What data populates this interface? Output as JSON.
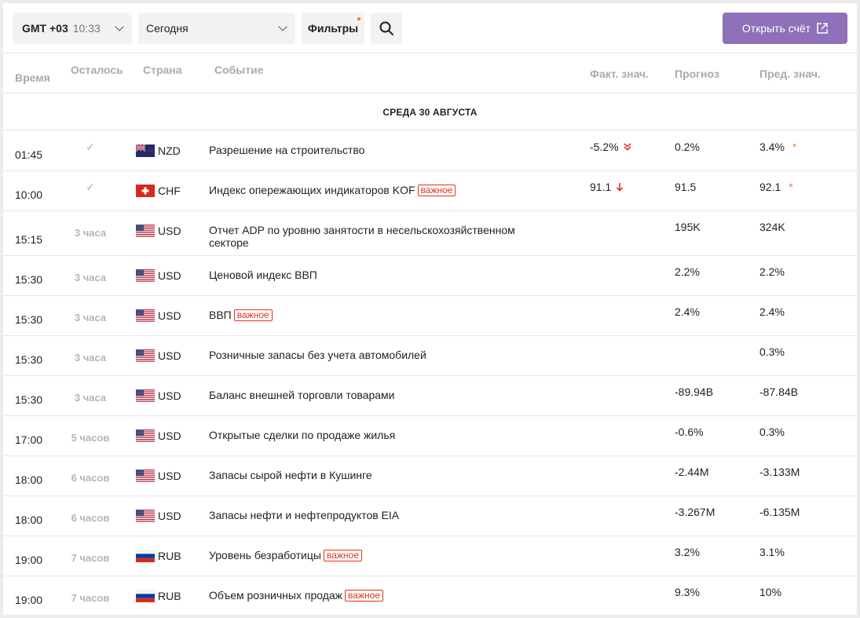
{
  "toolbar": {
    "timezone_label": "GMT +03",
    "timezone_time": "10:33",
    "date_value": "Сегодня",
    "filters_label": "Фильтры",
    "open_account_label": "Открыть счёт"
  },
  "columns": {
    "time": "Время",
    "remaining": "Осталось",
    "country": "Страна",
    "event": "Событие",
    "actual": "Факт. знач.",
    "forecast": "Прогноз",
    "previous": "Пред. знач."
  },
  "date_header": "СРЕДА 30 АВГУСТА",
  "badge_text": "важное",
  "colors": {
    "accent": "#8e71b8",
    "important": "#e0341c",
    "star": "#f07a3f"
  },
  "rows": [
    {
      "time": "01:45",
      "remaining": "✓",
      "currency": "NZD",
      "flag": "nz",
      "event": "Разрешение на строительство",
      "important": false,
      "actual": "-5.2%",
      "actual_icon": "double-down-arrow-icon",
      "forecast": "0.2%",
      "previous": "3.4%",
      "revised": true
    },
    {
      "time": "10:00",
      "remaining": "✓",
      "currency": "CHF",
      "flag": "ch",
      "event": "Индекс опережающих индикаторов KOF",
      "important": true,
      "actual": "91.1",
      "actual_icon": "down-arrow-icon",
      "forecast": "91.5",
      "previous": "92.1",
      "revised": true
    },
    {
      "time": "15:15",
      "remaining": "3 часа",
      "currency": "USD",
      "flag": "us",
      "event": "Отчет ADP по уровню занятости в несельскохозяйственном секторе",
      "important": false,
      "actual": "",
      "forecast": "195K",
      "previous": "324K",
      "revised": false
    },
    {
      "time": "15:30",
      "remaining": "3 часа",
      "currency": "USD",
      "flag": "us",
      "event": "Ценовой индекс ВВП",
      "important": false,
      "actual": "",
      "forecast": "2.2%",
      "previous": "2.2%",
      "revised": false
    },
    {
      "time": "15:30",
      "remaining": "3 часа",
      "currency": "USD",
      "flag": "us",
      "event": "ВВП",
      "important": true,
      "actual": "",
      "forecast": "2.4%",
      "previous": "2.4%",
      "revised": false
    },
    {
      "time": "15:30",
      "remaining": "3 часа",
      "currency": "USD",
      "flag": "us",
      "event": "Розничные запасы без учета автомобилей",
      "important": false,
      "actual": "",
      "forecast": "",
      "previous": "0.3%",
      "revised": false
    },
    {
      "time": "15:30",
      "remaining": "3 часа",
      "currency": "USD",
      "flag": "us",
      "event": "Баланс внешней торговли товарами",
      "important": false,
      "actual": "",
      "forecast": "-89.94B",
      "previous": "-87.84B",
      "revised": false
    },
    {
      "time": "17:00",
      "remaining": "5 часов",
      "currency": "USD",
      "flag": "us",
      "event": "Открытые сделки по продаже жилья",
      "important": false,
      "actual": "",
      "forecast": "-0.6%",
      "previous": "0.3%",
      "revised": false
    },
    {
      "time": "18:00",
      "remaining": "6 часов",
      "currency": "USD",
      "flag": "us",
      "event": "Запасы сырой нефти в Кушинге",
      "important": false,
      "actual": "",
      "forecast": "-2.44M",
      "previous": "-3.133M",
      "revised": false
    },
    {
      "time": "18:00",
      "remaining": "6 часов",
      "currency": "USD",
      "flag": "us",
      "event": "Запасы нефти и нефтепродуктов EIA",
      "important": false,
      "actual": "",
      "forecast": "-3.267M",
      "previous": "-6.135M",
      "revised": false
    },
    {
      "time": "19:00",
      "remaining": "7 часов",
      "currency": "RUB",
      "flag": "ru",
      "event": "Уровень безработицы",
      "important": true,
      "actual": "",
      "forecast": "3.2%",
      "previous": "3.1%",
      "revised": false
    },
    {
      "time": "19:00",
      "remaining": "7 часов",
      "currency": "RUB",
      "flag": "ru",
      "event": "Объем розничных продаж",
      "important": true,
      "actual": "",
      "forecast": "9.3%",
      "previous": "10%",
      "revised": false
    }
  ]
}
